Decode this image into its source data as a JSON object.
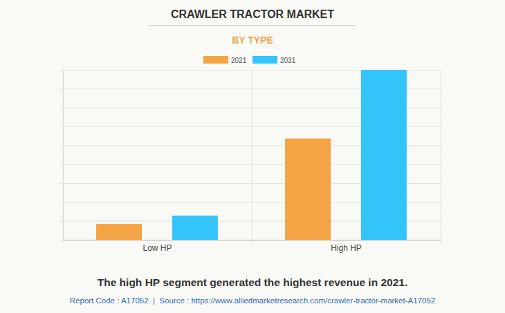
{
  "chart_data": {
    "type": "bar",
    "title": "CRAWLER TRACTOR MARKET",
    "subtitle": "BY TYPE",
    "categories": [
      "Low HP",
      "High HP"
    ],
    "series": [
      {
        "name": "2021",
        "color": "#f4a444",
        "values": [
          0.84,
          5.36
        ]
      },
      {
        "name": "2031",
        "color": "#33c4fa",
        "values": [
          1.28,
          9.0
        ]
      }
    ],
    "ylim": [
      0,
      9
    ],
    "yticks": [
      0,
      1,
      2,
      3,
      4,
      5,
      6,
      7,
      8,
      9
    ],
    "grid": true,
    "legend": "top",
    "tick_labels": "x",
    "annotations": [
      "The high HP segment generated the highest revenue in 2021.",
      "Report Code : A17052  |  Source : https://www.alliedmarketresearch.com/crawler-tractor-market-A17052"
    ]
  }
}
